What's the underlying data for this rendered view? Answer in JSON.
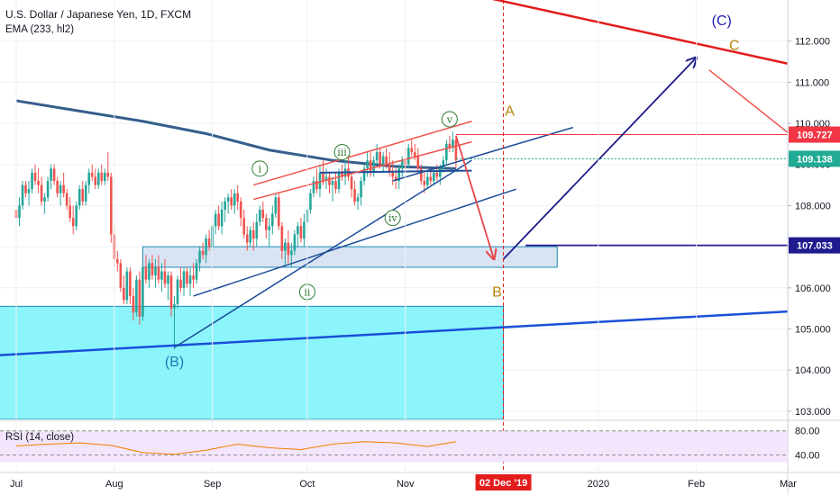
{
  "chart_data": {
    "type": "candlestick",
    "symbol_title": "U.S. Dollar / Japanese Yen, 1D, FXCM",
    "indicator_label": "EMA (233, hl2)",
    "rsi_label": "RSI (14, close)",
    "y_range": [
      102.8,
      113.0
    ],
    "price_ticks": [
      "103.000",
      "104.000",
      "105.000",
      "106.000",
      "107.000",
      "108.000",
      "109.000",
      "110.000",
      "111.000",
      "112.000"
    ],
    "rsi_ticks": [
      "80.00",
      "40.00"
    ],
    "x_labels": [
      "Jul",
      "Aug",
      "Sep",
      "Oct",
      "Nov",
      "2020",
      "Feb",
      "Mar"
    ],
    "x_label_days": [
      0,
      31,
      62,
      92,
      123,
      184,
      215,
      244
    ],
    "cursor_date_label": "02 Dec '19",
    "cursor_day": 154,
    "price_labels": [
      {
        "text": "109.727",
        "value": 109.727,
        "color": "#f23645"
      },
      {
        "text": "109.138",
        "value": 109.138,
        "color": "#22ab94"
      },
      {
        "text": "107.033",
        "value": 107.033,
        "color": "#1f1b8f"
      }
    ],
    "ohlc": [
      [
        0,
        107.9,
        108.0,
        107.6,
        107.7
      ],
      [
        1,
        107.7,
        108.2,
        107.5,
        108.0
      ],
      [
        2,
        108.0,
        108.6,
        107.9,
        108.5
      ],
      [
        3,
        108.5,
        108.6,
        108.2,
        108.3
      ],
      [
        4,
        108.3,
        108.6,
        108.0,
        108.4
      ],
      [
        5,
        108.4,
        108.9,
        108.3,
        108.8
      ],
      [
        6,
        108.8,
        109.0,
        108.5,
        108.6
      ],
      [
        7,
        108.6,
        108.9,
        108.3,
        108.5
      ],
      [
        8,
        108.5,
        108.7,
        108.0,
        108.1
      ],
      [
        9,
        108.1,
        108.3,
        107.8,
        108.2
      ],
      [
        10,
        108.2,
        108.7,
        108.1,
        108.6
      ],
      [
        11,
        108.6,
        109.0,
        108.4,
        108.9
      ],
      [
        12,
        108.9,
        109.0,
        108.5,
        108.6
      ],
      [
        13,
        108.6,
        108.7,
        108.2,
        108.3
      ],
      [
        14,
        108.3,
        108.6,
        108.0,
        108.5
      ],
      [
        15,
        108.5,
        108.8,
        108.2,
        108.3
      ],
      [
        16,
        108.3,
        108.4,
        107.9,
        108.0
      ],
      [
        17,
        108.0,
        108.2,
        107.6,
        107.7
      ],
      [
        18,
        107.7,
        108.0,
        107.3,
        107.5
      ],
      [
        19,
        107.5,
        108.1,
        107.4,
        108.0
      ],
      [
        20,
        108.0,
        108.5,
        107.9,
        108.4
      ],
      [
        21,
        108.4,
        108.6,
        108.0,
        108.1
      ],
      [
        22,
        108.1,
        108.6,
        108.0,
        108.5
      ],
      [
        23,
        108.5,
        108.9,
        108.3,
        108.8
      ],
      [
        24,
        108.8,
        109.0,
        108.6,
        108.7
      ],
      [
        25,
        108.7,
        108.9,
        108.4,
        108.5
      ],
      [
        26,
        108.5,
        108.9,
        108.4,
        108.8
      ],
      [
        27,
        108.8,
        109.0,
        108.5,
        108.6
      ],
      [
        28,
        108.6,
        108.9,
        108.5,
        108.8
      ],
      [
        29,
        108.8,
        109.3,
        108.6,
        108.7
      ],
      [
        30,
        108.7,
        108.8,
        107.1,
        107.3
      ],
      [
        31,
        107.3,
        107.5,
        106.5,
        106.7
      ],
      [
        32,
        106.7,
        106.9,
        106.4,
        106.6
      ],
      [
        33,
        106.6,
        106.7,
        105.9,
        106.0
      ],
      [
        34,
        106.0,
        106.3,
        105.6,
        105.7
      ],
      [
        35,
        105.7,
        106.5,
        105.6,
        106.4
      ],
      [
        36,
        106.4,
        106.5,
        105.6,
        105.8
      ],
      [
        37,
        105.8,
        106.0,
        105.2,
        105.4
      ],
      [
        38,
        105.4,
        106.3,
        105.3,
        106.2
      ],
      [
        39,
        106.2,
        106.4,
        105.1,
        105.3
      ],
      [
        40,
        105.3,
        106.6,
        105.2,
        106.5
      ],
      [
        41,
        106.5,
        106.8,
        106.1,
        106.2
      ],
      [
        42,
        106.2,
        106.7,
        106.0,
        106.6
      ],
      [
        43,
        106.6,
        106.8,
        106.2,
        106.3
      ],
      [
        44,
        106.3,
        106.7,
        106.0,
        106.5
      ],
      [
        45,
        106.5,
        106.8,
        106.1,
        106.2
      ],
      [
        46,
        106.2,
        106.6,
        105.9,
        106.4
      ],
      [
        47,
        106.4,
        106.7,
        106.0,
        106.1
      ],
      [
        48,
        106.1,
        106.4,
        105.7,
        106.3
      ],
      [
        49,
        106.3,
        106.4,
        105.3,
        105.5
      ],
      [
        50,
        105.5,
        105.8,
        104.5,
        105.6
      ],
      [
        51,
        105.6,
        106.3,
        105.5,
        106.2
      ],
      [
        52,
        106.2,
        106.5,
        105.9,
        106.0
      ],
      [
        53,
        106.0,
        106.5,
        105.8,
        106.4
      ],
      [
        54,
        106.4,
        106.5,
        106.0,
        106.1
      ],
      [
        55,
        106.1,
        106.5,
        105.8,
        106.3
      ],
      [
        56,
        106.3,
        106.6,
        106.0,
        106.2
      ],
      [
        57,
        106.2,
        106.7,
        106.1,
        106.6
      ],
      [
        58,
        106.6,
        107.0,
        106.4,
        106.9
      ],
      [
        59,
        106.9,
        107.1,
        106.7,
        106.8
      ],
      [
        60,
        106.8,
        107.3,
        106.6,
        107.2
      ],
      [
        61,
        107.2,
        107.4,
        106.9,
        107.0
      ],
      [
        62,
        107.0,
        107.6,
        106.9,
        107.5
      ],
      [
        63,
        107.5,
        107.9,
        107.3,
        107.8
      ],
      [
        64,
        107.8,
        108.0,
        107.4,
        107.5
      ],
      [
        65,
        107.5,
        108.1,
        107.3,
        107.9
      ],
      [
        66,
        107.9,
        108.2,
        107.6,
        108.1
      ],
      [
        67,
        108.1,
        108.3,
        107.8,
        108.2
      ],
      [
        68,
        108.2,
        108.4,
        107.9,
        108.0
      ],
      [
        69,
        108.0,
        108.4,
        107.8,
        108.3
      ],
      [
        70,
        108.3,
        108.5,
        107.9,
        108.1
      ],
      [
        71,
        108.1,
        108.2,
        107.5,
        107.7
      ],
      [
        72,
        107.7,
        107.9,
        107.2,
        107.3
      ],
      [
        73,
        107.3,
        107.5,
        106.9,
        107.1
      ],
      [
        74,
        107.1,
        107.5,
        107.0,
        107.4
      ],
      [
        75,
        107.4,
        107.6,
        106.9,
        107.2
      ],
      [
        76,
        107.2,
        107.8,
        107.0,
        107.6
      ],
      [
        77,
        107.6,
        108.0,
        107.5,
        107.9
      ],
      [
        78,
        107.9,
        108.1,
        107.6,
        107.7
      ],
      [
        79,
        107.7,
        107.8,
        107.2,
        107.4
      ],
      [
        80,
        107.4,
        107.7,
        107.0,
        107.5
      ],
      [
        81,
        107.5,
        108.0,
        107.3,
        107.8
      ],
      [
        82,
        107.8,
        108.3,
        107.7,
        108.2
      ],
      [
        83,
        108.2,
        108.3,
        107.4,
        107.5
      ],
      [
        84,
        107.5,
        107.6,
        106.7,
        106.9
      ],
      [
        85,
        106.9,
        107.2,
        106.5,
        107.1
      ],
      [
        86,
        107.1,
        107.4,
        106.6,
        106.8
      ],
      [
        87,
        106.8,
        107.1,
        106.5,
        106.9
      ],
      [
        88,
        106.9,
        107.4,
        106.8,
        107.3
      ],
      [
        89,
        107.3,
        107.6,
        107.0,
        107.5
      ],
      [
        90,
        107.5,
        107.7,
        107.1,
        107.2
      ],
      [
        91,
        107.2,
        107.8,
        107.0,
        107.6
      ],
      [
        92,
        107.6,
        108.0,
        107.4,
        107.9
      ],
      [
        93,
        107.9,
        108.4,
        107.8,
        108.3
      ],
      [
        94,
        108.3,
        108.7,
        108.2,
        108.6
      ],
      [
        95,
        108.6,
        108.9,
        108.3,
        108.4
      ],
      [
        96,
        108.4,
        109.0,
        108.2,
        108.8
      ],
      [
        97,
        108.8,
        109.1,
        108.5,
        108.6
      ],
      [
        98,
        108.6,
        108.9,
        108.4,
        108.7
      ],
      [
        99,
        108.7,
        108.8,
        108.3,
        108.5
      ],
      [
        100,
        108.5,
        108.7,
        108.1,
        108.6
      ],
      [
        101,
        108.6,
        108.8,
        108.3,
        108.4
      ],
      [
        102,
        108.4,
        108.9,
        108.3,
        108.8
      ],
      [
        103,
        108.8,
        109.0,
        108.6,
        108.7
      ],
      [
        104,
        108.7,
        109.1,
        108.5,
        108.9
      ],
      [
        105,
        108.9,
        109.2,
        108.6,
        108.7
      ],
      [
        106,
        108.7,
        108.8,
        108.2,
        108.4
      ],
      [
        107,
        108.4,
        108.6,
        108.0,
        108.1
      ],
      [
        108,
        108.1,
        108.3,
        107.9,
        108.2
      ],
      [
        109,
        108.2,
        108.7,
        108.0,
        108.6
      ],
      [
        110,
        108.6,
        109.0,
        108.5,
        108.9
      ],
      [
        111,
        108.9,
        109.3,
        108.7,
        109.1
      ],
      [
        112,
        109.1,
        109.3,
        108.7,
        108.8
      ],
      [
        113,
        108.8,
        109.2,
        108.7,
        109.1
      ],
      [
        114,
        109.1,
        109.5,
        109.0,
        109.3
      ],
      [
        115,
        109.3,
        109.4,
        108.9,
        109.0
      ],
      [
        116,
        109.0,
        109.3,
        108.8,
        109.2
      ],
      [
        117,
        109.2,
        109.4,
        108.9,
        109.0
      ],
      [
        118,
        109.0,
        109.3,
        108.7,
        108.8
      ],
      [
        119,
        108.8,
        109.1,
        108.5,
        108.7
      ],
      [
        120,
        108.7,
        108.9,
        108.4,
        108.6
      ],
      [
        121,
        108.6,
        109.0,
        108.4,
        108.9
      ],
      [
        122,
        108.9,
        109.2,
        108.7,
        109.1
      ],
      [
        123,
        109.1,
        109.4,
        108.8,
        109.0
      ],
      [
        124,
        109.0,
        109.5,
        108.9,
        109.4
      ],
      [
        125,
        109.4,
        109.6,
        109.2,
        109.3
      ],
      [
        126,
        109.3,
        109.5,
        109.1,
        109.2
      ],
      [
        127,
        109.2,
        109.4,
        108.8,
        108.9
      ],
      [
        128,
        108.9,
        109.0,
        108.5,
        108.6
      ],
      [
        129,
        108.6,
        108.8,
        108.3,
        108.5
      ],
      [
        130,
        108.5,
        108.8,
        108.4,
        108.7
      ],
      [
        131,
        108.7,
        108.9,
        108.5,
        108.6
      ],
      [
        132,
        108.6,
        108.9,
        108.5,
        108.8
      ],
      [
        133,
        108.8,
        109.0,
        108.6,
        108.7
      ],
      [
        134,
        108.7,
        109.0,
        108.5,
        108.9
      ],
      [
        135,
        108.9,
        109.2,
        108.8,
        109.1
      ],
      [
        136,
        109.1,
        109.6,
        109.0,
        109.5
      ],
      [
        137,
        109.5,
        109.7,
        109.3,
        109.4
      ],
      [
        138,
        109.4,
        109.8,
        109.3,
        109.6
      ],
      [
        139,
        109.6,
        109.7,
        108.9,
        109.1
      ]
    ],
    "ema": {
      "x": [
        0,
        20,
        40,
        60,
        80,
        100,
        120,
        139
      ],
      "y": [
        110.55,
        110.3,
        110.05,
        109.75,
        109.35,
        109.1,
        108.95,
        108.9
      ]
    },
    "rsi": {
      "x": [
        0,
        10,
        20,
        30,
        40,
        50,
        60,
        70,
        80,
        90,
        100,
        110,
        120,
        130,
        139
      ],
      "y": [
        55,
        58,
        60,
        56,
        44,
        41,
        48,
        58,
        52,
        49,
        58,
        62,
        60,
        54,
        62
      ]
    },
    "annotations": [
      {
        "text": "(C)",
        "day": 223,
        "price": 112.5,
        "color": "#1f1bb5"
      },
      {
        "text": "C",
        "day": 227,
        "price": 111.9,
        "color": "#b8860b"
      },
      {
        "text": "A",
        "day": 156,
        "price": 110.3,
        "color": "#b8860b"
      },
      {
        "text": "B",
        "day": 152,
        "price": 105.9,
        "color": "#b8860b"
      },
      {
        "text": "(B)",
        "day": 50,
        "price": 104.2,
        "color": "#1f7ab5"
      },
      {
        "text": "v",
        "day": 137,
        "price": 110.1,
        "color": "#2e7d32",
        "circled": true
      },
      {
        "text": "iii",
        "day": 103,
        "price": 109.3,
        "color": "#2e7d32",
        "circled": true
      },
      {
        "text": "i",
        "day": 77,
        "price": 108.9,
        "color": "#2e7d32",
        "circled": true
      },
      {
        "text": "iv",
        "day": 119,
        "price": 107.7,
        "color": "#2e7d32",
        "circled": true
      },
      {
        "text": "ii",
        "day": 92,
        "price": 105.9,
        "color": "#2e7d32",
        "circled": true
      }
    ],
    "zones": [
      {
        "d1": -20,
        "d2": 154,
        "p1": 102.8,
        "p2": 105.55,
        "fill": "#8cf5fb",
        "stroke": "#1e88b5"
      },
      {
        "d1": 40,
        "d2": 171,
        "p1": 106.5,
        "p2": 107.0,
        "fill": "#d8e4f3",
        "stroke": "#1e88b5"
      }
    ],
    "lines": [
      {
        "d1": -20,
        "p1": 104.3,
        "d2": 250,
        "p2": 105.45,
        "color": "#1a4fd8",
        "width": 2.5,
        "dash": false
      },
      {
        "d1": -20,
        "p1": 115.9,
        "d2": 250,
        "p2": 111.35,
        "color": "#e31c1c",
        "width": 2.5,
        "dash": false
      },
      {
        "d1": 50,
        "p1": 104.55,
        "d2": 144,
        "p2": 109.1,
        "color": "#1d4d9a",
        "width": 1.5,
        "dash": false
      },
      {
        "d1": 56,
        "p1": 105.8,
        "d2": 158,
        "p2": 108.4,
        "color": "#1d4d9a",
        "width": 1.5,
        "dash": false
      },
      {
        "d1": 119,
        "p1": 108.6,
        "d2": 176,
        "p2": 109.9,
        "color": "#1d4d9a",
        "width": 1.5,
        "dash": false
      },
      {
        "d1": 96,
        "p1": 108.8,
        "d2": 144,
        "p2": 108.85,
        "color": "#1d4d9a",
        "width": 2,
        "dash": false
      },
      {
        "d1": 75,
        "p1": 108.5,
        "d2": 144,
        "p2": 110.05,
        "color": "#f0524b",
        "width": 1.5,
        "dash": false
      },
      {
        "d1": 75,
        "p1": 108.15,
        "d2": 144,
        "p2": 109.55,
        "color": "#f0524b",
        "width": 1.5,
        "dash": false
      },
      {
        "d1": 139,
        "p1": 109.727,
        "d2": 250,
        "p2": 109.727,
        "color": "#f23645",
        "width": 1,
        "dash": false
      },
      {
        "d1": 139,
        "p1": 109.138,
        "d2": 250,
        "p2": 109.138,
        "color": "#22ab94",
        "width": 1,
        "dash": true
      },
      {
        "d1": 161,
        "p1": 107.033,
        "d2": 250,
        "p2": 107.033,
        "color": "#2e1c8f",
        "width": 1.8,
        "dash": false
      },
      {
        "d1": 219,
        "p1": 111.3,
        "d2": 250,
        "p2": 109.4,
        "color": "#f0524b",
        "width": 1.5,
        "dash": false
      }
    ],
    "arrows": [
      {
        "d1": 139,
        "p1": 109.7,
        "d2": 151,
        "p2": 106.7,
        "color": "#e8454a"
      },
      {
        "d1": 154,
        "p1": 106.7,
        "d2": 215,
        "p2": 111.6,
        "color": "#1c1a8a"
      }
    ]
  }
}
